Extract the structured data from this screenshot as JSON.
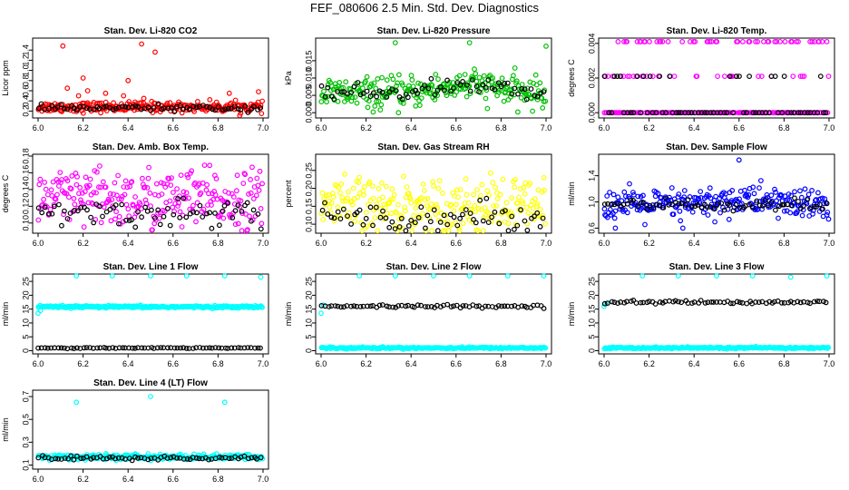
{
  "title": "FEF_080606  2.5 Min. Std. Dev. Diagnostics",
  "chart_data": [
    {
      "type": "scatter",
      "title": "Stan. Dev. Li-820 CO2",
      "ylabel": "Licor ppm",
      "xlim": [
        6.0,
        7.0
      ],
      "ylim": [
        0.1,
        1.6
      ],
      "xticks": [
        "6.0",
        "6.2",
        "6.4",
        "6.6",
        "6.8",
        "7.0"
      ],
      "yticks": [
        "0.2",
        "0.4",
        "0.6",
        "0.8",
        "1.0",
        "1.2",
        "1.4"
      ],
      "yticks_values": [
        0.2,
        0.4,
        0.6,
        0.8,
        1.0,
        1.2,
        1.4
      ],
      "series": [
        {
          "color": "#ff0000",
          "base": 0.28,
          "noise": 0.05,
          "outliers": [
            [
              6.11,
              1.48
            ],
            [
              6.46,
              1.52
            ],
            [
              6.52,
              1.36
            ],
            [
              6.4,
              0.8
            ],
            [
              6.2,
              0.85
            ],
            [
              6.3,
              0.55
            ],
            [
              6.13,
              0.65
            ],
            [
              6.22,
              0.6
            ],
            [
              6.38,
              0.5
            ],
            [
              6.85,
              0.55
            ],
            [
              6.98,
              0.58
            ],
            [
              6.18,
              0.5
            ],
            [
              6.47,
              0.45
            ]
          ]
        },
        {
          "color": "#000000",
          "base": 0.26,
          "noise": 0.03,
          "outliers": []
        }
      ]
    },
    {
      "type": "scatter",
      "title": "Stan. Dev. Li-820 Pressure",
      "ylabel": "kPa",
      "xlim": [
        6.0,
        7.0
      ],
      "ylim": [
        -0.001,
        0.021
      ],
      "xticks": [
        "6.0",
        "6.2",
        "6.4",
        "6.6",
        "6.8",
        "7.0"
      ],
      "yticks": [
        "0.000",
        "0.005",
        "0.010",
        "0.015"
      ],
      "yticks_values": [
        0.0,
        0.005,
        0.01,
        0.015
      ],
      "series": [
        {
          "color": "#00c000",
          "base": 0.0055,
          "noise": 0.0022,
          "hump": 0.0025,
          "outliers": [
            [
              6.33,
              0.0202
            ],
            [
              6.66,
              0.0202
            ],
            [
              7.0,
              0.0192
            ]
          ]
        },
        {
          "color": "#000000",
          "base": 0.0058,
          "noise": 0.0012,
          "hump": 0.0022,
          "outliers": []
        }
      ]
    },
    {
      "type": "scatter",
      "title": "Stan. Dev. Li-820 Temp.",
      "ylabel": "degrees C",
      "xlim": [
        6.0,
        7.0
      ],
      "ylim": [
        -0.0002,
        0.0042
      ],
      "xticks": [
        "6.0",
        "6.2",
        "6.4",
        "6.6",
        "6.8",
        "7.0"
      ],
      "yticks": [
        "0.000",
        "0.002",
        "0.004"
      ],
      "yticks_values": [
        0.0,
        0.002,
        0.004
      ],
      "series": [
        {
          "color": "#ff00ff",
          "levels": [
            0.0,
            0.0021,
            0.0041
          ],
          "outliers": []
        },
        {
          "color": "#000000",
          "levels": [
            0.0,
            0.0021
          ],
          "outliers": []
        }
      ]
    },
    {
      "type": "scatter",
      "title": "Stan. Dev. Amb. Box Temp.",
      "ylabel": "degrees C",
      "xlim": [
        6.0,
        7.0
      ],
      "ylim": [
        0.09,
        0.18
      ],
      "xticks": [
        "6.0",
        "6.2",
        "6.4",
        "6.6",
        "6.8",
        "7.0"
      ],
      "yticks": [
        "0.10",
        "0.12",
        "0.14",
        "0.16",
        "0.18"
      ],
      "yticks_values": [
        0.1,
        0.12,
        0.14,
        0.16,
        0.18
      ],
      "series": [
        {
          "color": "#ff00ff",
          "base": 0.128,
          "noise": 0.018,
          "outliers": []
        },
        {
          "color": "#000000",
          "base": 0.112,
          "noise": 0.008,
          "outliers": []
        }
      ]
    },
    {
      "type": "scatter",
      "title": "Stan. Dev. Gas Stream RH",
      "ylabel": "percent",
      "xlim": [
        6.0,
        7.0
      ],
      "ylim": [
        0.08,
        0.29
      ],
      "xticks": [
        "6.0",
        "6.2",
        "6.4",
        "6.6",
        "6.8",
        "7.0"
      ],
      "yticks": [
        "0.10",
        "0.15",
        "0.20",
        "0.25"
      ],
      "yticks_values": [
        0.1,
        0.15,
        0.2,
        0.25
      ],
      "series": [
        {
          "color": "#ffff00",
          "base": 0.15,
          "noise": 0.04,
          "outliers": []
        },
        {
          "color": "#000000",
          "base": 0.12,
          "noise": 0.02,
          "outliers": []
        }
      ]
    },
    {
      "type": "scatter",
      "title": "Stan. Dev. Sample Flow",
      "ylabel": "ml/min",
      "xlim": [
        6.0,
        7.0
      ],
      "ylim": [
        0.55,
        1.7
      ],
      "xticks": [
        "6.0",
        "6.2",
        "6.4",
        "6.6",
        "6.8",
        "7.0"
      ],
      "yticks": [
        "0.6",
        "1.0",
        "1.4"
      ],
      "yticks_values": [
        0.6,
        1.0,
        1.4
      ],
      "series": [
        {
          "color": "#0000ff",
          "base": 0.95,
          "noise": 0.12,
          "hump": 0.08,
          "outliers": [
            [
              6.6,
              1.64
            ],
            [
              6.05,
              0.6
            ],
            [
              6.35,
              0.6
            ]
          ]
        },
        {
          "color": "#000000",
          "base": 0.95,
          "noise": 0.05,
          "outliers": []
        }
      ]
    },
    {
      "type": "scatter",
      "title": "Stan. Dev. Line 1 Flow",
      "ylabel": "ml/min",
      "xlim": [
        6.0,
        7.0
      ],
      "ylim": [
        -0.5,
        27
      ],
      "xticks": [
        "6.0",
        "6.2",
        "6.4",
        "6.6",
        "6.8",
        "7.0"
      ],
      "yticks": [
        "0",
        "5",
        "10",
        "15",
        "20",
        "25"
      ],
      "yticks_values": [
        0,
        5,
        10,
        15,
        20,
        25
      ],
      "series": [
        {
          "color": "#00ffff",
          "base": 15.8,
          "noise": 0.2,
          "outliers": [
            [
              6.17,
              27.0
            ],
            [
              6.33,
              27.0
            ],
            [
              6.5,
              27.0
            ],
            [
              6.66,
              27.0
            ],
            [
              6.83,
              27.0
            ],
            [
              6.99,
              26.5
            ],
            [
              6.0,
              13.5
            ],
            [
              6.01,
              14.5
            ]
          ]
        },
        {
          "color": "#000000",
          "base": 1.0,
          "noise": 0.1,
          "outliers": []
        }
      ]
    },
    {
      "type": "scatter",
      "title": "Stan. Dev. Line 2 Flow",
      "ylabel": "ml/min",
      "xlim": [
        6.0,
        7.0
      ],
      "ylim": [
        -0.5,
        27
      ],
      "xticks": [
        "6.0",
        "6.2",
        "6.4",
        "6.6",
        "6.8",
        "7.0"
      ],
      "yticks": [
        "0",
        "5",
        "10",
        "15",
        "20",
        "25"
      ],
      "yticks_values": [
        0,
        5,
        10,
        15,
        20,
        25
      ],
      "series": [
        {
          "color": "#00ffff",
          "base": 1.0,
          "noise": 0.15,
          "outliers": [
            [
              6.17,
              27.0
            ],
            [
              6.33,
              27.0
            ],
            [
              6.5,
              27.0
            ],
            [
              6.66,
              27.0
            ],
            [
              6.83,
              27.0
            ],
            [
              6.99,
              27.0
            ],
            [
              6.0,
              13.5
            ],
            [
              6.01,
              16.5
            ]
          ]
        },
        {
          "color": "#000000",
          "base": 16.0,
          "noise": 0.25,
          "outliers": []
        }
      ]
    },
    {
      "type": "scatter",
      "title": "Stan. Dev. Line 3 Flow",
      "ylabel": "ml/min",
      "xlim": [
        6.0,
        7.0
      ],
      "ylim": [
        -0.5,
        27
      ],
      "xticks": [
        "6.0",
        "6.2",
        "6.4",
        "6.6",
        "6.8",
        "7.0"
      ],
      "yticks": [
        "0",
        "5",
        "10",
        "15",
        "20",
        "25"
      ],
      "yticks_values": [
        0,
        5,
        10,
        15,
        20,
        25
      ],
      "series": [
        {
          "color": "#00ffff",
          "base": 1.0,
          "noise": 0.15,
          "outliers": [
            [
              6.17,
              27.0
            ],
            [
              6.33,
              27.0
            ],
            [
              6.5,
              27.0
            ],
            [
              6.66,
              27.0
            ],
            [
              6.83,
              26.5
            ],
            [
              6.99,
              27.0
            ],
            [
              6.0,
              16.0
            ],
            [
              6.01,
              17.0
            ]
          ]
        },
        {
          "color": "#000000",
          "base": 17.5,
          "noise": 0.3,
          "outliers": []
        }
      ]
    },
    {
      "type": "scatter",
      "title": "Stan. Dev. Line 4 (LT) Flow",
      "ylabel": "ml/min",
      "xlim": [
        6.0,
        7.0
      ],
      "ylim": [
        0.08,
        0.74
      ],
      "xticks": [
        "6.0",
        "6.2",
        "6.4",
        "6.6",
        "6.8",
        "7.0"
      ],
      "yticks": [
        "0.1",
        "0.3",
        "0.5",
        "0.7"
      ],
      "yticks_values": [
        0.1,
        0.3,
        0.5,
        0.7
      ],
      "series": [
        {
          "color": "#00ffff",
          "base": 0.17,
          "noise": 0.012,
          "outliers": [
            [
              6.17,
              0.65
            ],
            [
              6.5,
              0.7
            ],
            [
              6.83,
              0.65
            ]
          ]
        },
        {
          "color": "#000000",
          "base": 0.16,
          "noise": 0.01,
          "outliers": []
        }
      ]
    }
  ]
}
